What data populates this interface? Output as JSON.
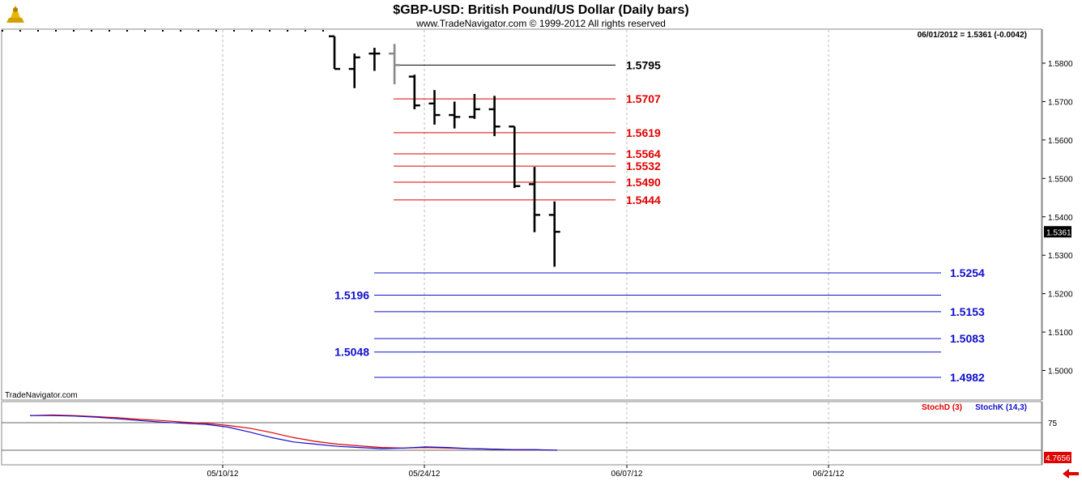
{
  "header": {
    "title": "$GBP-USD:  British Pound/US Dollar  (Daily bars)",
    "subtitle": "www.TradeNavigator.com © 1999-2012 All rights reserved",
    "quote": "06/01/2012 = 1.5361 (-0.0042)",
    "watermark": "TradeNavigator.com"
  },
  "colors": {
    "resistance": "#e00000",
    "support": "#1010cc",
    "pivot": "#000000",
    "bars": "#000000",
    "stochD": "#e00000",
    "stochK": "#1010cc"
  },
  "chart_data": [
    {
      "type": "ohlc",
      "title": "$GBP-USD:  British Pound/US Dollar  (Daily bars)",
      "ylim": [
        1.493,
        1.5865
      ],
      "y_ticks": [
        "1.5800",
        "1.5700",
        "1.5600",
        "1.5500",
        "1.5400",
        "1.5300",
        "1.5200",
        "1.5100",
        "1.5000"
      ],
      "x_labels": [
        "05/10/12",
        "05/24/12",
        "06/07/12",
        "06/21/12"
      ],
      "last_price": "1.5361",
      "bars": [
        {
          "o": 1.587,
          "h": 1.587,
          "l": 1.5785,
          "c": 1.5785,
          "color": "#000000"
        },
        {
          "o": 1.5785,
          "h": 1.5825,
          "l": 1.5735,
          "c": 1.5815,
          "color": "#000000"
        },
        {
          "o": 1.5825,
          "h": 1.584,
          "l": 1.578,
          "c": 1.5825,
          "color": "#000000"
        },
        {
          "o": 1.5825,
          "h": 1.585,
          "l": 1.5745,
          "c": 1.5795,
          "color": "#888888"
        },
        {
          "o": 1.5765,
          "h": 1.577,
          "l": 1.568,
          "c": 1.569,
          "color": "#000000"
        },
        {
          "o": 1.5695,
          "h": 1.573,
          "l": 1.564,
          "c": 1.5665,
          "color": "#000000"
        },
        {
          "o": 1.5665,
          "h": 1.57,
          "l": 1.563,
          "c": 1.566,
          "color": "#000000"
        },
        {
          "o": 1.566,
          "h": 1.572,
          "l": 1.5655,
          "c": 1.568,
          "color": "#000000"
        },
        {
          "o": 1.568,
          "h": 1.5715,
          "l": 1.561,
          "c": 1.5635,
          "color": "#000000"
        },
        {
          "o": 1.5635,
          "h": 1.5635,
          "l": 1.5475,
          "c": 1.548,
          "color": "#000000"
        },
        {
          "o": 1.5485,
          "h": 1.553,
          "l": 1.536,
          "c": 1.5405,
          "color": "#000000"
        },
        {
          "o": 1.5405,
          "h": 1.544,
          "l": 1.527,
          "c": 1.5361,
          "color": "#000000"
        }
      ],
      "levels": [
        {
          "value": 1.5795,
          "label": "1.5795",
          "kind": "pivot",
          "side": "mid"
        },
        {
          "value": 1.5707,
          "label": "1.5707",
          "kind": "resistance",
          "side": "mid"
        },
        {
          "value": 1.5619,
          "label": "1.5619",
          "kind": "resistance",
          "side": "mid"
        },
        {
          "value": 1.5564,
          "label": "1.5564",
          "kind": "resistance",
          "side": "mid"
        },
        {
          "value": 1.5532,
          "label": "1.5532",
          "kind": "resistance",
          "side": "mid"
        },
        {
          "value": 1.549,
          "label": "1.5490",
          "kind": "resistance",
          "side": "mid"
        },
        {
          "value": 1.5444,
          "label": "1.5444",
          "kind": "resistance",
          "side": "mid"
        },
        {
          "value": 1.5254,
          "label": "1.5254",
          "kind": "support",
          "side": "right"
        },
        {
          "value": 1.5196,
          "label": "1.5196",
          "kind": "support",
          "side": "left"
        },
        {
          "value": 1.5153,
          "label": "1.5153",
          "kind": "support",
          "side": "right"
        },
        {
          "value": 1.5083,
          "label": "1.5083",
          "kind": "support",
          "side": "right"
        },
        {
          "value": 1.5048,
          "label": "1.5048",
          "kind": "support",
          "side": "left"
        },
        {
          "value": 1.4982,
          "label": "1.4982",
          "kind": "support",
          "side": "right"
        }
      ]
    },
    {
      "type": "line",
      "series": [
        {
          "name": "StochD (3)",
          "values": [
            88,
            89,
            88,
            86,
            84,
            81,
            79,
            76,
            74,
            70,
            65,
            57,
            48,
            41,
            36,
            33,
            30,
            29,
            30,
            29,
            28,
            27,
            26,
            26,
            25
          ]
        },
        {
          "name": "StochK (14,3)",
          "values": [
            88,
            88,
            87,
            85,
            82,
            79,
            76,
            74,
            72,
            67,
            58,
            48,
            40,
            36,
            32,
            30,
            28,
            29,
            31,
            30,
            28,
            27,
            26,
            26,
            25
          ]
        }
      ],
      "y_tick": "75",
      "last_value": "4.7656"
    }
  ]
}
